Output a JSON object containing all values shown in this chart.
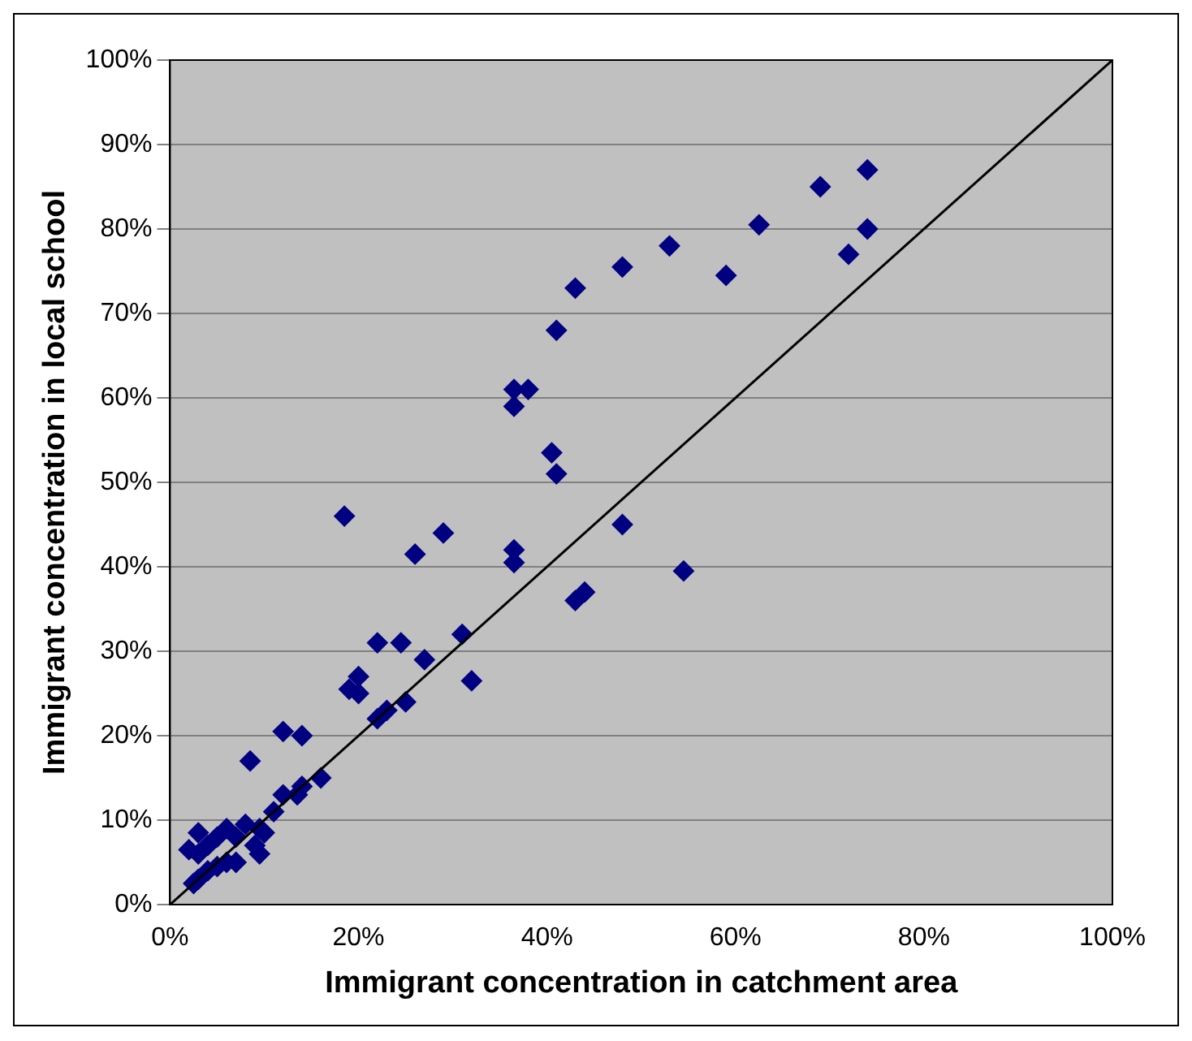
{
  "chart_data": {
    "type": "scatter",
    "xlabel": "Immigrant concentration in catchment area",
    "ylabel": "Immigrant concentration in local school",
    "xlim": [
      0,
      100
    ],
    "ylim": [
      0,
      100
    ],
    "xticks": [
      {
        "value": 0,
        "label": "0%"
      },
      {
        "value": 20,
        "label": "20%"
      },
      {
        "value": 40,
        "label": "40%"
      },
      {
        "value": 60,
        "label": "60%"
      },
      {
        "value": 80,
        "label": "80%"
      },
      {
        "value": 100,
        "label": "100%"
      }
    ],
    "yticks": [
      {
        "value": 0,
        "label": "0%"
      },
      {
        "value": 10,
        "label": "10%"
      },
      {
        "value": 20,
        "label": "20%"
      },
      {
        "value": 30,
        "label": "30%"
      },
      {
        "value": 40,
        "label": "40%"
      },
      {
        "value": 50,
        "label": "50%"
      },
      {
        "value": 60,
        "label": "60%"
      },
      {
        "value": 70,
        "label": "70%"
      },
      {
        "value": 80,
        "label": "80%"
      },
      {
        "value": 90,
        "label": "90%"
      },
      {
        "value": 100,
        "label": "100%"
      }
    ],
    "grid": "y",
    "legend": false,
    "marker": "diamond",
    "series": [
      {
        "type": "scatter",
        "color": "#000080",
        "x": [
          74,
          69,
          74,
          72,
          62.5,
          59,
          53,
          48,
          43,
          41,
          38,
          36.5,
          36.5,
          40.5,
          41,
          48,
          36.5,
          36.5,
          54.5,
          44,
          43,
          29,
          26,
          18.5,
          31,
          24.5,
          22,
          27,
          32,
          20,
          19,
          20,
          25,
          23,
          22,
          12,
          14,
          8.5,
          16,
          14,
          13.5,
          12,
          11,
          9.5,
          8,
          6,
          5,
          3,
          2,
          3,
          4,
          7,
          9,
          9.5,
          7,
          6,
          4,
          3,
          2.5,
          5,
          10
        ],
        "values": [
          87,
          85,
          80,
          77,
          80.5,
          74.5,
          78,
          75.5,
          73,
          68,
          61,
          61,
          59,
          53.5,
          51,
          45,
          42,
          40.5,
          39.5,
          37,
          36,
          44,
          41.5,
          46,
          32,
          31,
          31,
          29,
          26.5,
          27,
          25.5,
          25,
          24,
          23,
          22,
          20.5,
          20,
          17,
          15,
          14,
          13,
          13,
          11,
          9,
          9.5,
          9,
          8,
          8.5,
          6.5,
          6,
          7,
          8,
          7,
          6,
          5,
          5,
          4,
          3,
          2.5,
          4.5,
          8.5
        ]
      },
      {
        "type": "line",
        "color": "#000000",
        "marker": "none",
        "x": [
          0,
          100
        ],
        "values": [
          0,
          100
        ]
      }
    ]
  }
}
